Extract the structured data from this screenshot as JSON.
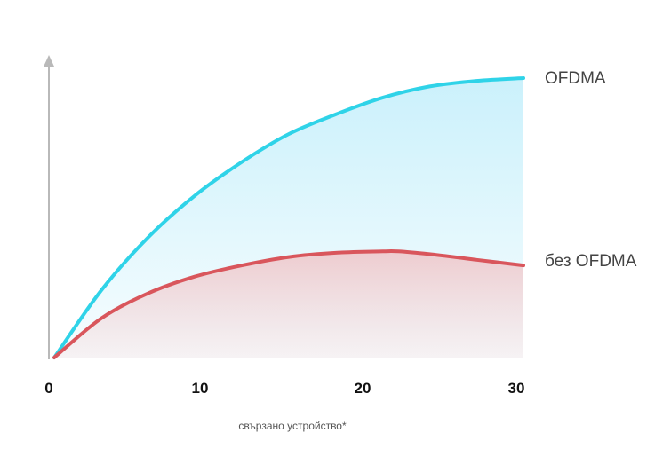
{
  "chart_data": {
    "type": "area",
    "title": "",
    "xlabel": "свързано устройство*",
    "ylabel": "",
    "x_ticks": [
      0,
      10,
      20,
      30
    ],
    "xlim": [
      0,
      30
    ],
    "ylim": [
      0,
      100
    ],
    "grid": false,
    "legend": "inline-right",
    "series": [
      {
        "name": "OFDMA",
        "color": "#2fd3e8",
        "fill_color": "#c8f0fb",
        "x": [
          0,
          3,
          6,
          9,
          12,
          15,
          18,
          21,
          24,
          27,
          30
        ],
        "y": [
          0,
          24,
          43,
          58,
          70,
          80,
          87,
          93,
          97,
          99,
          100
        ]
      },
      {
        "name": "без OFDMA",
        "color": "#d9565c",
        "fill_color": "#f4d3d5",
        "x": [
          0,
          3,
          6,
          9,
          12,
          15,
          18,
          21,
          22,
          24,
          27,
          30
        ],
        "y": [
          0,
          14,
          23,
          29,
          33,
          36,
          37.5,
          38,
          38,
          37,
          35,
          33
        ]
      }
    ]
  }
}
